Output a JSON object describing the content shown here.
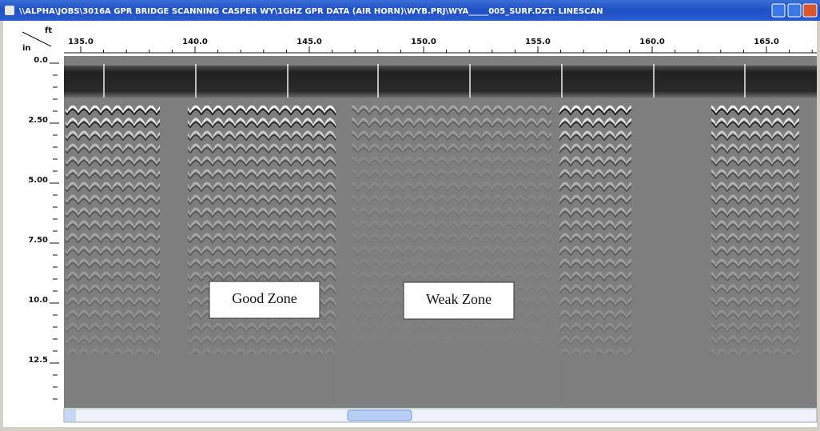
{
  "window": {
    "title": "\\\\ALPHA\\JOBS\\3016A GPR BRIDGE SCANNING CASPER WY\\1GHZ GPR DATA (AIR HORN)\\WYB.PRJ\\WYA_____005_SURF.DZT:  LINESCAN"
  },
  "ruler": {
    "x_unit": "ft",
    "y_unit": "in",
    "x_ticks": [
      "135.0",
      "140.0",
      "145.0",
      "150.0",
      "155.0",
      "160.0",
      "165.0"
    ],
    "y_ticks": [
      "0.0",
      "2.50",
      "5.00",
      "7.50",
      "10.0",
      "12.5"
    ]
  },
  "annotations": [
    "Good Zone",
    "Weak Zone"
  ]
}
